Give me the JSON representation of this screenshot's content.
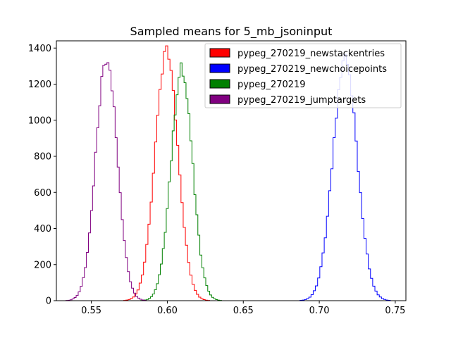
{
  "chart_data": {
    "type": "histogram",
    "title": "Sampled means for 5_mb_jsoninput",
    "xlabel": "",
    "ylabel": "",
    "xlim": [
      0.527,
      0.757
    ],
    "ylim": [
      0,
      1440
    ],
    "x_ticks": [
      0.55,
      0.6,
      0.65,
      0.7,
      0.75
    ],
    "x_tick_labels": [
      "0.55",
      "0.60",
      "0.65",
      "0.70",
      "0.75"
    ],
    "y_ticks": [
      0,
      200,
      400,
      600,
      800,
      1000,
      1200,
      1400
    ],
    "y_tick_labels": [
      "0",
      "200",
      "400",
      "600",
      "800",
      "1000",
      "1200",
      "1400"
    ],
    "grid": false,
    "legend_position": "top-right",
    "series": [
      {
        "name": "pypeg_270219_newstackentries",
        "color": "#ff0000",
        "mean": 0.5995,
        "sd": 0.0075,
        "peak": 1380,
        "bin_width": 0.00145
      },
      {
        "name": "pypeg_270219_newchoicepoints",
        "color": "#0000ff",
        "mean": 0.717,
        "sd": 0.008,
        "peak": 1330,
        "bin_width": 0.00145
      },
      {
        "name": "pypeg_270219",
        "color": "#008000",
        "mean": 0.6095,
        "sd": 0.007,
        "peak": 1285,
        "bin_width": 0.0013
      },
      {
        "name": "pypeg_270219_jumptargets",
        "color": "#800080",
        "mean": 0.56,
        "sd": 0.007,
        "peak": 1350,
        "bin_width": 0.00135
      }
    ]
  }
}
